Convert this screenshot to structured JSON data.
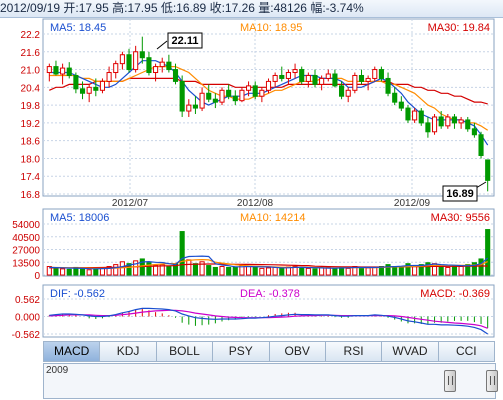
{
  "header": {
    "date": "2012/09/19",
    "open": "开:17.95",
    "high": "高:17.95",
    "low": "低:16.89",
    "close": "收:17.26",
    "volume": "量:48126",
    "change": "幅:-3.74%"
  },
  "price_panel": {
    "ma5": "MA5: 18.45",
    "ma10": "MA10: 18.95",
    "ma30": "MA30: 19.84",
    "high_marker": "22.11",
    "low_marker": "16.89"
  },
  "volume_panel": {
    "ma5": "MA5: 18006",
    "ma10": "MA10: 14214",
    "ma30": "MA30: 9556"
  },
  "macd_panel": {
    "dif": "DIF: -0.562",
    "dea": "DEA: -0.378",
    "macd": "MACD: -0.369"
  },
  "tabs": [
    "MACD",
    "KDJ",
    "BOLL",
    "PSY",
    "OBV",
    "RSI",
    "WVAD",
    "CCI"
  ],
  "navigator": {
    "year": "2009"
  },
  "colors": {
    "up": "#e00000",
    "down": "#009900",
    "ma5": "#1a4fd0",
    "ma10": "#ff8c00",
    "ma30": "#d40000",
    "dea": "#cc00cc",
    "grid": "#c7d4e6"
  },
  "chart_data": [
    {
      "type": "candlestick",
      "title": "",
      "x_tick_labels": [
        "2012/07",
        "2012/08",
        "2012/09"
      ],
      "y_tick_labels": [
        "22.2",
        "21.6",
        "21.0",
        "20.4",
        "19.8",
        "19.2",
        "18.6",
        "18.0",
        "17.4",
        "16.8"
      ],
      "ylim": [
        16.8,
        22.2
      ],
      "grid": true,
      "candles": [
        {
          "o": 20.9,
          "h": 21.2,
          "l": 20.6,
          "c": 21.1
        },
        {
          "o": 21.1,
          "h": 21.3,
          "l": 20.8,
          "c": 20.85
        },
        {
          "o": 20.85,
          "h": 21.2,
          "l": 20.5,
          "c": 21.05
        },
        {
          "o": 21.05,
          "h": 21.25,
          "l": 20.7,
          "c": 20.8
        },
        {
          "o": 20.8,
          "h": 20.9,
          "l": 20.2,
          "c": 20.35
        },
        {
          "o": 20.35,
          "h": 20.6,
          "l": 20.0,
          "c": 20.2
        },
        {
          "o": 20.2,
          "h": 20.5,
          "l": 19.9,
          "c": 20.4
        },
        {
          "o": 20.4,
          "h": 20.7,
          "l": 20.1,
          "c": 20.3
        },
        {
          "o": 20.3,
          "h": 20.7,
          "l": 20.2,
          "c": 20.6
        },
        {
          "o": 20.6,
          "h": 21.1,
          "l": 20.4,
          "c": 20.9
        },
        {
          "o": 20.9,
          "h": 21.3,
          "l": 20.7,
          "c": 21.2
        },
        {
          "o": 21.2,
          "h": 21.6,
          "l": 21.0,
          "c": 21.5
        },
        {
          "o": 21.5,
          "h": 21.7,
          "l": 20.9,
          "c": 21.0
        },
        {
          "o": 21.0,
          "h": 21.8,
          "l": 20.9,
          "c": 21.6
        },
        {
          "o": 21.6,
          "h": 22.11,
          "l": 21.2,
          "c": 21.4
        },
        {
          "o": 21.4,
          "h": 21.6,
          "l": 20.8,
          "c": 20.9
        },
        {
          "o": 20.9,
          "h": 21.2,
          "l": 20.6,
          "c": 21.1
        },
        {
          "o": 21.1,
          "h": 21.4,
          "l": 20.9,
          "c": 21.25
        },
        {
          "o": 21.25,
          "h": 21.5,
          "l": 20.9,
          "c": 21.0
        },
        {
          "o": 21.0,
          "h": 21.2,
          "l": 20.5,
          "c": 20.6
        },
        {
          "o": 20.6,
          "h": 20.8,
          "l": 19.4,
          "c": 19.6
        },
        {
          "o": 19.6,
          "h": 20.0,
          "l": 19.4,
          "c": 19.8
        },
        {
          "o": 19.8,
          "h": 20.1,
          "l": 19.5,
          "c": 19.7
        },
        {
          "o": 19.7,
          "h": 20.4,
          "l": 19.6,
          "c": 20.2
        },
        {
          "o": 20.2,
          "h": 20.5,
          "l": 19.9,
          "c": 20.0
        },
        {
          "o": 20.0,
          "h": 20.2,
          "l": 19.7,
          "c": 19.9
        },
        {
          "o": 19.9,
          "h": 20.4,
          "l": 19.8,
          "c": 20.3
        },
        {
          "o": 20.3,
          "h": 20.5,
          "l": 20.0,
          "c": 20.1
        },
        {
          "o": 20.1,
          "h": 20.3,
          "l": 19.8,
          "c": 19.95
        },
        {
          "o": 19.95,
          "h": 20.4,
          "l": 19.9,
          "c": 20.3
        },
        {
          "o": 20.3,
          "h": 20.6,
          "l": 20.1,
          "c": 20.45
        },
        {
          "o": 20.45,
          "h": 20.6,
          "l": 20.0,
          "c": 20.1
        },
        {
          "o": 20.1,
          "h": 20.4,
          "l": 19.9,
          "c": 20.3
        },
        {
          "o": 20.3,
          "h": 20.7,
          "l": 20.2,
          "c": 20.6
        },
        {
          "o": 20.6,
          "h": 20.9,
          "l": 20.4,
          "c": 20.8
        },
        {
          "o": 20.8,
          "h": 21.1,
          "l": 20.6,
          "c": 20.7
        },
        {
          "o": 20.7,
          "h": 21.0,
          "l": 20.5,
          "c": 20.9
        },
        {
          "o": 20.9,
          "h": 21.2,
          "l": 20.7,
          "c": 21.0
        },
        {
          "o": 21.0,
          "h": 21.1,
          "l": 20.5,
          "c": 20.6
        },
        {
          "o": 20.6,
          "h": 20.9,
          "l": 20.4,
          "c": 20.8
        },
        {
          "o": 20.8,
          "h": 21.0,
          "l": 20.4,
          "c": 20.5
        },
        {
          "o": 20.5,
          "h": 20.8,
          "l": 20.3,
          "c": 20.7
        },
        {
          "o": 20.7,
          "h": 21.0,
          "l": 20.6,
          "c": 20.85
        },
        {
          "o": 20.85,
          "h": 21.0,
          "l": 20.4,
          "c": 20.45
        },
        {
          "o": 20.45,
          "h": 20.6,
          "l": 20.0,
          "c": 20.1
        },
        {
          "o": 20.1,
          "h": 20.4,
          "l": 19.9,
          "c": 20.3
        },
        {
          "o": 20.3,
          "h": 20.9,
          "l": 20.2,
          "c": 20.8
        },
        {
          "o": 20.8,
          "h": 21.0,
          "l": 20.5,
          "c": 20.6
        },
        {
          "o": 20.6,
          "h": 20.8,
          "l": 20.3,
          "c": 20.7
        },
        {
          "o": 20.7,
          "h": 21.1,
          "l": 20.6,
          "c": 21.0
        },
        {
          "o": 21.0,
          "h": 21.1,
          "l": 20.6,
          "c": 20.7
        },
        {
          "o": 20.7,
          "h": 20.9,
          "l": 20.1,
          "c": 20.2
        },
        {
          "o": 20.2,
          "h": 20.4,
          "l": 19.8,
          "c": 19.9
        },
        {
          "o": 19.9,
          "h": 20.1,
          "l": 19.6,
          "c": 19.7
        },
        {
          "o": 19.7,
          "h": 19.8,
          "l": 19.2,
          "c": 19.3
        },
        {
          "o": 19.3,
          "h": 19.7,
          "l": 19.2,
          "c": 19.6
        },
        {
          "o": 19.6,
          "h": 19.7,
          "l": 19.1,
          "c": 19.2
        },
        {
          "o": 19.2,
          "h": 19.4,
          "l": 18.7,
          "c": 18.9
        },
        {
          "o": 18.9,
          "h": 19.5,
          "l": 18.8,
          "c": 19.4
        },
        {
          "o": 19.4,
          "h": 19.6,
          "l": 19.0,
          "c": 19.1
        },
        {
          "o": 19.1,
          "h": 19.5,
          "l": 19.0,
          "c": 19.4
        },
        {
          "o": 19.4,
          "h": 19.5,
          "l": 19.0,
          "c": 19.2
        },
        {
          "o": 19.2,
          "h": 19.4,
          "l": 19.0,
          "c": 19.3
        },
        {
          "o": 19.3,
          "h": 19.4,
          "l": 18.9,
          "c": 19.0
        },
        {
          "o": 19.0,
          "h": 19.2,
          "l": 18.7,
          "c": 18.8
        },
        {
          "o": 18.8,
          "h": 18.9,
          "l": 18.0,
          "c": 18.1
        },
        {
          "o": 17.95,
          "h": 17.95,
          "l": 16.89,
          "c": 17.26
        }
      ],
      "ma5": [
        20.9,
        20.9,
        20.9,
        20.9,
        20.8,
        20.7,
        20.6,
        20.5,
        20.4,
        20.4,
        20.5,
        20.7,
        20.9,
        21.1,
        21.3,
        21.3,
        21.3,
        21.2,
        21.1,
        20.9,
        20.6,
        20.3,
        20.1,
        19.9,
        19.8,
        19.9,
        20.0,
        20.1,
        20.1,
        20.1,
        20.2,
        20.2,
        20.2,
        20.3,
        20.4,
        20.5,
        20.6,
        20.7,
        20.8,
        20.8,
        20.8,
        20.7,
        20.7,
        20.7,
        20.6,
        20.4,
        20.4,
        20.4,
        20.5,
        20.6,
        20.7,
        20.6,
        20.4,
        20.2,
        19.9,
        19.7,
        19.5,
        19.4,
        19.3,
        19.3,
        19.3,
        19.3,
        19.3,
        19.2,
        19.1,
        18.8,
        18.45
      ],
      "ma10": [
        20.8,
        20.8,
        20.8,
        20.8,
        20.8,
        20.7,
        20.7,
        20.6,
        20.6,
        20.6,
        20.6,
        20.6,
        20.7,
        20.8,
        20.9,
        21.0,
        21.1,
        21.1,
        21.1,
        21.1,
        21.0,
        20.9,
        20.7,
        20.5,
        20.3,
        20.2,
        20.1,
        20.1,
        20.0,
        20.0,
        20.0,
        20.1,
        20.1,
        20.2,
        20.3,
        20.3,
        20.4,
        20.5,
        20.6,
        20.6,
        20.6,
        20.7,
        20.7,
        20.7,
        20.7,
        20.6,
        20.6,
        20.6,
        20.6,
        20.6,
        20.6,
        20.5,
        20.5,
        20.4,
        20.3,
        20.2,
        20.0,
        19.8,
        19.7,
        19.5,
        19.4,
        19.3,
        19.3,
        19.2,
        19.2,
        19.1,
        18.95
      ],
      "ma30": [
        20.3,
        20.4,
        20.4,
        20.5,
        20.5,
        20.5,
        20.5,
        20.6,
        20.6,
        20.6,
        20.6,
        20.6,
        20.7,
        20.7,
        20.7,
        20.7,
        20.7,
        20.7,
        20.7,
        20.7,
        20.6,
        20.6,
        20.6,
        20.5,
        20.5,
        20.5,
        20.5,
        20.5,
        20.4,
        20.4,
        20.4,
        20.4,
        20.4,
        20.4,
        20.4,
        20.4,
        20.5,
        20.5,
        20.5,
        20.5,
        20.5,
        20.5,
        20.5,
        20.5,
        20.5,
        20.5,
        20.5,
        20.5,
        20.5,
        20.6,
        20.6,
        20.6,
        20.5,
        20.5,
        20.5,
        20.4,
        20.4,
        20.3,
        20.3,
        20.2,
        20.2,
        20.1,
        20.1,
        20.0,
        19.9,
        19.9,
        19.84
      ]
    },
    {
      "type": "bar",
      "title": "",
      "y_tick_labels": [
        "54000",
        "40500",
        "27000",
        "13500",
        "0"
      ],
      "ylim": [
        0,
        54000
      ],
      "volumes": [
        9000,
        7000,
        6500,
        6000,
        8000,
        7500,
        5500,
        6000,
        7000,
        9000,
        11000,
        14000,
        12000,
        15000,
        17000,
        13000,
        10000,
        11000,
        9000,
        12000,
        46000,
        16000,
        12000,
        14000,
        10000,
        8000,
        9000,
        8000,
        8500,
        10000,
        9500,
        8000,
        7000,
        7500,
        8000,
        7000,
        8500,
        9000,
        7500,
        7000,
        6500,
        7500,
        8000,
        7000,
        8500,
        7000,
        9000,
        8000,
        7500,
        8000,
        9000,
        11000,
        9000,
        8500,
        12000,
        10000,
        11000,
        13000,
        12000,
        9000,
        8000,
        10000,
        9000,
        11000,
        13000,
        17000,
        48126
      ],
      "ma5": [
        8000,
        7800,
        7600,
        7300,
        7300,
        7000,
        6700,
        6600,
        6800,
        7000,
        7700,
        8900,
        10600,
        11800,
        13800,
        14200,
        13400,
        13200,
        12000,
        11000,
        17600,
        19600,
        19800,
        20000,
        19600,
        12000,
        10600,
        9800,
        8700,
        8700,
        9000,
        8800,
        8600,
        8600,
        8000,
        7600,
        7600,
        8000,
        8000,
        7800,
        7700,
        7500,
        7300,
        7300,
        7500,
        7600,
        7900,
        7900,
        8000,
        7900,
        8300,
        8700,
        8900,
        9300,
        9900,
        10100,
        10100,
        10700,
        11600,
        11000,
        10600,
        10400,
        10000,
        9800,
        10200,
        12000,
        18006
      ],
      "ma10": [
        8000,
        7900,
        7800,
        7600,
        7500,
        7400,
        7300,
        7100,
        7100,
        7100,
        7300,
        7600,
        8100,
        8800,
        9700,
        10500,
        11100,
        11600,
        12100,
        12200,
        14500,
        15500,
        16100,
        16300,
        16000,
        13600,
        12600,
        11800,
        10800,
        10300,
        9600,
        9300,
        9000,
        8800,
        8500,
        8300,
        8200,
        8300,
        8300,
        8000,
        7900,
        7800,
        7600,
        7500,
        7600,
        7600,
        7800,
        7800,
        7800,
        7800,
        8100,
        8400,
        8600,
        8700,
        8900,
        9100,
        9400,
        9900,
        10300,
        10300,
        10300,
        10300,
        10300,
        10300,
        10600,
        11000,
        14214
      ],
      "ma30": [
        7500,
        7500,
        7600,
        7600,
        7700,
        7700,
        7800,
        7800,
        7900,
        8000,
        8100,
        8300,
        8500,
        8700,
        9000,
        9200,
        9400,
        9600,
        9700,
        9900,
        10900,
        11200,
        11400,
        11500,
        11600,
        11600,
        11500,
        11400,
        11300,
        11200,
        11200,
        11100,
        11000,
        10900,
        10800,
        10600,
        10400,
        10200,
        10000,
        9900,
        9300,
        9100,
        8900,
        8800,
        8700,
        8600,
        8600,
        8500,
        8500,
        8500,
        8500,
        8500,
        8600,
        8600,
        8700,
        8800,
        8900,
        9000,
        9100,
        9100,
        9200,
        9200,
        9200,
        9300,
        9400,
        9500,
        9556
      ]
    },
    {
      "type": "line",
      "title": "",
      "y_tick_labels": [
        "0.562",
        "0.000",
        "-0.562"
      ],
      "ylim": [
        -0.562,
        0.562
      ],
      "dif": [
        0.04,
        0.06,
        0.08,
        0.08,
        0.07,
        0.05,
        0.02,
        0.0,
        0.0,
        0.02,
        0.06,
        0.12,
        0.16,
        0.22,
        0.26,
        0.26,
        0.25,
        0.24,
        0.22,
        0.18,
        0.08,
        0.02,
        -0.04,
        -0.06,
        -0.08,
        -0.09,
        -0.08,
        -0.08,
        -0.08,
        -0.07,
        -0.05,
        -0.05,
        -0.04,
        -0.02,
        0.01,
        0.03,
        0.05,
        0.07,
        0.06,
        0.06,
        0.05,
        0.05,
        0.05,
        0.03,
        0.01,
        0.01,
        0.03,
        0.03,
        0.03,
        0.05,
        0.04,
        0.01,
        -0.03,
        -0.08,
        -0.14,
        -0.17,
        -0.21,
        -0.25,
        -0.25,
        -0.27,
        -0.27,
        -0.28,
        -0.29,
        -0.31,
        -0.35,
        -0.42,
        -0.562
      ],
      "dea": [
        0.02,
        0.03,
        0.04,
        0.05,
        0.05,
        0.05,
        0.05,
        0.04,
        0.03,
        0.03,
        0.04,
        0.06,
        0.08,
        0.11,
        0.14,
        0.16,
        0.18,
        0.19,
        0.2,
        0.2,
        0.18,
        0.15,
        0.11,
        0.08,
        0.05,
        0.02,
        0.0,
        -0.02,
        -0.03,
        -0.04,
        -0.04,
        -0.04,
        -0.04,
        -0.04,
        -0.03,
        -0.02,
        -0.01,
        0.01,
        0.02,
        0.03,
        0.03,
        0.04,
        0.04,
        0.04,
        0.03,
        0.03,
        0.03,
        0.03,
        0.03,
        0.03,
        0.03,
        0.03,
        0.02,
        0.0,
        -0.03,
        -0.06,
        -0.09,
        -0.12,
        -0.15,
        -0.17,
        -0.19,
        -0.21,
        -0.22,
        -0.24,
        -0.26,
        -0.3,
        -0.378
      ]
    }
  ]
}
